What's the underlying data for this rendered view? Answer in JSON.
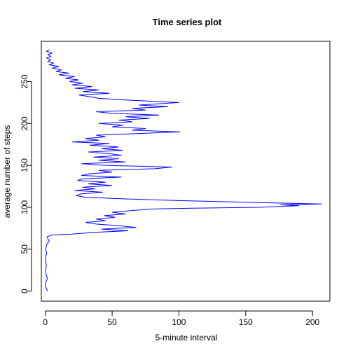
{
  "chart_data": {
    "type": "line",
    "title": "Time series plot",
    "xlabel": "5-minute interval",
    "ylabel": "average number of steps",
    "xlim": [
      -3,
      213
    ],
    "ylim": [
      -12,
      298
    ],
    "x_ticks": [
      "0",
      "50",
      "100",
      "150",
      "200"
    ],
    "y_ticks": [
      "0",
      "50",
      "100",
      "150",
      "200",
      "250"
    ],
    "grid": false,
    "legend": "none",
    "series": [
      {
        "color": "#0000ff",
        "points": [
          [
            1.7,
            0
          ],
          [
            0.3,
            5
          ],
          [
            0.1,
            10
          ],
          [
            1.5,
            15
          ],
          [
            0.6,
            20
          ],
          [
            0.1,
            25
          ],
          [
            0.8,
            30
          ],
          [
            0.4,
            35
          ],
          [
            0.1,
            40
          ],
          [
            1.0,
            45
          ],
          [
            0.3,
            50
          ],
          [
            0.9,
            55
          ],
          [
            3.0,
            60
          ],
          [
            2.0,
            62
          ],
          [
            1.5,
            65
          ],
          [
            5.2,
            67
          ],
          [
            20,
            68
          ],
          [
            35,
            70
          ],
          [
            62,
            72
          ],
          [
            42,
            74
          ],
          [
            68,
            76
          ],
          [
            55,
            78
          ],
          [
            38,
            80
          ],
          [
            30,
            82
          ],
          [
            45,
            84
          ],
          [
            38,
            86
          ],
          [
            52,
            88
          ],
          [
            44,
            90
          ],
          [
            60,
            92
          ],
          [
            50,
            94
          ],
          [
            64,
            96
          ],
          [
            80,
            98
          ],
          [
            110,
            99
          ],
          [
            160,
            100
          ],
          [
            190,
            102
          ],
          [
            176,
            103
          ],
          [
            207,
            104
          ],
          [
            150,
            106
          ],
          [
            100,
            108
          ],
          [
            60,
            110
          ],
          [
            30,
            112
          ],
          [
            23,
            114
          ],
          [
            27,
            116
          ],
          [
            43,
            118
          ],
          [
            22,
            120
          ],
          [
            37,
            122
          ],
          [
            28,
            124
          ],
          [
            50,
            126
          ],
          [
            32,
            128
          ],
          [
            45,
            130
          ],
          [
            24,
            132
          ],
          [
            28,
            134
          ],
          [
            57,
            136
          ],
          [
            27,
            138
          ],
          [
            33,
            140
          ],
          [
            50,
            142
          ],
          [
            40,
            144
          ],
          [
            82,
            146
          ],
          [
            95,
            148
          ],
          [
            45,
            150
          ],
          [
            27,
            152
          ],
          [
            60,
            154
          ],
          [
            40,
            156
          ],
          [
            55,
            158
          ],
          [
            36,
            160
          ],
          [
            57,
            162
          ],
          [
            48,
            164
          ],
          [
            32,
            166
          ],
          [
            58,
            168
          ],
          [
            42,
            170
          ],
          [
            55,
            172
          ],
          [
            33,
            174
          ],
          [
            48,
            176
          ],
          [
            20,
            178
          ],
          [
            40,
            180
          ],
          [
            30,
            182
          ],
          [
            45,
            184
          ],
          [
            38,
            186
          ],
          [
            70,
            188
          ],
          [
            101,
            190
          ],
          [
            65,
            192
          ],
          [
            75,
            194
          ],
          [
            50,
            196
          ],
          [
            58,
            198
          ],
          [
            40,
            200
          ],
          [
            65,
            202
          ],
          [
            55,
            204
          ],
          [
            78,
            206
          ],
          [
            60,
            208
          ],
          [
            85,
            210
          ],
          [
            50,
            212
          ],
          [
            38,
            214
          ],
          [
            75,
            216
          ],
          [
            65,
            218
          ],
          [
            92,
            220
          ],
          [
            70,
            222
          ],
          [
            100,
            225
          ],
          [
            60,
            228
          ],
          [
            40,
            230
          ],
          [
            33,
            232
          ],
          [
            25,
            234
          ],
          [
            48,
            236
          ],
          [
            28,
            238
          ],
          [
            40,
            240
          ],
          [
            22,
            242
          ],
          [
            35,
            244
          ],
          [
            20,
            246
          ],
          [
            28,
            248
          ],
          [
            18,
            250
          ],
          [
            25,
            252
          ],
          [
            15,
            254
          ],
          [
            22,
            256
          ],
          [
            10,
            258
          ],
          [
            18,
            260
          ],
          [
            8,
            262
          ],
          [
            12,
            264
          ],
          [
            5,
            266
          ],
          [
            10,
            268
          ],
          [
            3,
            270
          ],
          [
            6,
            272
          ],
          [
            2,
            274
          ],
          [
            4,
            276
          ],
          [
            1,
            278
          ],
          [
            4,
            280
          ],
          [
            2,
            282
          ],
          [
            5,
            284
          ],
          [
            1,
            286
          ],
          [
            3,
            288
          ]
        ]
      }
    ]
  }
}
